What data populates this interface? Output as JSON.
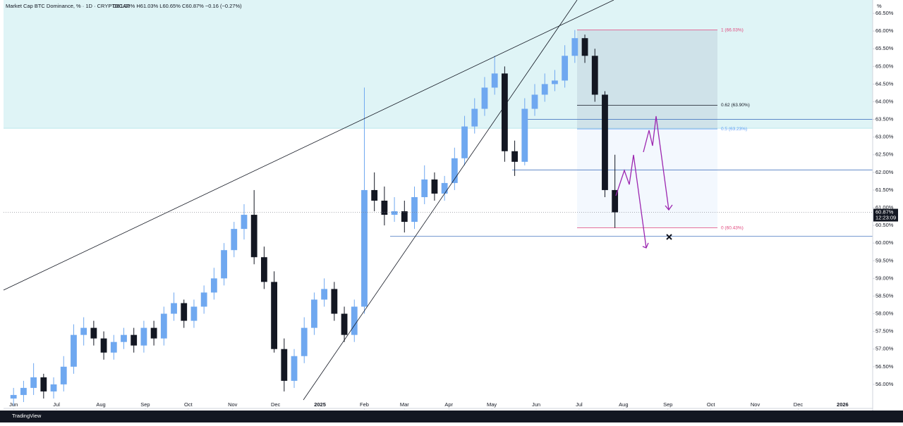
{
  "chart_data": {
    "type": "candlestick",
    "title": "Market Cap BTC Dominance, % · 1D · CRYPTOCAP",
    "ohlc_summary": "O61.03% H61.03% L60.65% C60.87% −0.16 (−0.27%)",
    "unit": "%",
    "brand": "TradingView",
    "up_color": "#6fa8f0",
    "down_color": "#131722",
    "x": [
      0,
      7,
      14,
      21,
      28,
      35,
      42,
      49,
      56,
      63,
      70,
      77,
      84,
      91,
      98,
      105,
      112,
      119,
      126,
      133,
      140,
      147,
      154,
      161,
      168,
      175,
      182,
      189,
      196,
      203,
      210,
      217,
      224,
      231,
      238,
      245,
      252,
      259,
      266,
      273,
      280,
      287,
      294,
      301,
      308,
      315,
      322,
      329,
      336,
      343,
      350,
      357,
      364,
      371,
      378,
      385,
      392,
      399,
      406,
      413,
      420
    ],
    "open": [
      55.6,
      55.7,
      55.9,
      56.2,
      55.8,
      56.0,
      56.5,
      57.4,
      57.6,
      57.3,
      56.9,
      57.2,
      57.4,
      57.1,
      57.6,
      57.3,
      58.0,
      58.3,
      57.8,
      58.2,
      58.6,
      59.0,
      59.8,
      60.4,
      60.8,
      59.6,
      58.9,
      57.0,
      56.1,
      56.8,
      57.6,
      58.4,
      58.7,
      58.0,
      57.4,
      58.2,
      61.5,
      61.2,
      60.8,
      60.9,
      60.6,
      61.3,
      61.8,
      61.4,
      61.7,
      62.4,
      63.3,
      63.8,
      64.4,
      64.8,
      62.6,
      62.3,
      63.8,
      64.2,
      64.5,
      64.6,
      65.3,
      65.8,
      65.3,
      64.2,
      61.5
    ],
    "high": [
      55.9,
      56.1,
      56.6,
      56.3,
      56.2,
      56.8,
      57.7,
      57.9,
      57.8,
      57.5,
      57.4,
      57.6,
      57.6,
      57.8,
      57.8,
      58.2,
      58.6,
      58.4,
      58.4,
      58.8,
      59.3,
      60.0,
      60.6,
      61.1,
      61.5,
      59.9,
      59.2,
      57.3,
      57.0,
      57.9,
      58.6,
      59.0,
      58.9,
      58.2,
      58.4,
      64.4,
      62.0,
      61.6,
      61.3,
      61.2,
      61.6,
      62.2,
      62.0,
      61.9,
      62.7,
      63.6,
      64.1,
      64.7,
      65.3,
      65.0,
      62.9,
      64.1,
      64.5,
      64.8,
      64.9,
      65.6,
      66.03,
      65.9,
      65.5,
      64.3,
      62.5
    ],
    "low": [
      55.4,
      55.5,
      55.7,
      55.6,
      55.6,
      55.8,
      56.3,
      57.1,
      57.1,
      56.7,
      56.7,
      57.0,
      56.9,
      56.9,
      57.1,
      57.1,
      57.8,
      57.6,
      57.6,
      58.0,
      58.4,
      58.8,
      59.6,
      60.1,
      59.4,
      58.7,
      56.9,
      55.8,
      55.9,
      56.6,
      57.4,
      58.2,
      57.8,
      57.2,
      57.2,
      58.0,
      60.9,
      60.5,
      60.6,
      60.3,
      60.4,
      61.1,
      61.2,
      61.2,
      61.5,
      62.2,
      63.1,
      63.6,
      64.2,
      62.3,
      61.9,
      62.2,
      63.6,
      64.0,
      64.3,
      64.4,
      65.1,
      65.1,
      64.0,
      61.3,
      60.43
    ],
    "close": [
      55.7,
      55.9,
      56.2,
      55.8,
      56.0,
      56.5,
      57.4,
      57.6,
      57.3,
      56.9,
      57.2,
      57.4,
      57.1,
      57.6,
      57.3,
      58.0,
      58.3,
      57.8,
      58.2,
      58.6,
      59.0,
      59.8,
      60.4,
      60.8,
      59.6,
      58.9,
      57.0,
      56.1,
      56.8,
      57.6,
      58.4,
      58.7,
      58.0,
      57.4,
      58.2,
      61.5,
      61.2,
      60.8,
      60.9,
      60.6,
      61.3,
      61.8,
      61.4,
      61.7,
      62.4,
      63.3,
      63.8,
      64.4,
      64.8,
      62.6,
      62.3,
      63.8,
      64.2,
      64.5,
      64.6,
      65.3,
      65.8,
      65.3,
      64.2,
      61.5,
      60.87
    ],
    "xlim": [
      -7,
      600
    ],
    "xticks": [
      {
        "value": 0,
        "label": "Jun"
      },
      {
        "value": 30,
        "label": "Jul"
      },
      {
        "value": 61,
        "label": "Aug"
      },
      {
        "value": 92,
        "label": "Sep"
      },
      {
        "value": 122,
        "label": "Oct"
      },
      {
        "value": 153,
        "label": "Nov"
      },
      {
        "value": 183,
        "label": "Dec"
      },
      {
        "value": 214,
        "label": "2025"
      },
      {
        "value": 245,
        "label": "Feb"
      },
      {
        "value": 273,
        "label": "Mar"
      },
      {
        "value": 304,
        "label": "Apr"
      },
      {
        "value": 334,
        "label": "May"
      },
      {
        "value": 365,
        "label": "Jun"
      },
      {
        "value": 395,
        "label": "Jul"
      },
      {
        "value": 426,
        "label": "Aug"
      },
      {
        "value": 457,
        "label": "Sep"
      },
      {
        "value": 487,
        "label": "Oct"
      },
      {
        "value": 518,
        "label": "Nov"
      },
      {
        "value": 548,
        "label": "Dec"
      },
      {
        "value": 579,
        "label": "2026"
      }
    ],
    "ylim": [
      55.32,
      66.88
    ],
    "yticks": [
      {
        "value": 56,
        "label": "56.00%"
      },
      {
        "value": 56.5,
        "label": "56.50%"
      },
      {
        "value": 57,
        "label": "57.00%"
      },
      {
        "value": 57.5,
        "label": "57.50%"
      },
      {
        "value": 58,
        "label": "58.00%"
      },
      {
        "value": 58.5,
        "label": "58.50%"
      },
      {
        "value": 59,
        "label": "59.00%"
      },
      {
        "value": 59.5,
        "label": "59.50%"
      },
      {
        "value": 60,
        "label": "60.00%"
      },
      {
        "value": 60.5,
        "label": "60.50%"
      },
      {
        "value": 61,
        "label": "61.00%"
      },
      {
        "value": 61.5,
        "label": "61.50%"
      },
      {
        "value": 62,
        "label": "62.00%"
      },
      {
        "value": 62.5,
        "label": "62.50%"
      },
      {
        "value": 63,
        "label": "63.00%"
      },
      {
        "value": 63.5,
        "label": "63.50%"
      },
      {
        "value": 64,
        "label": "64.00%"
      },
      {
        "value": 64.5,
        "label": "64.50%"
      },
      {
        "value": 65,
        "label": "65.00%"
      },
      {
        "value": 65.5,
        "label": "65.50%"
      },
      {
        "value": 66,
        "label": "66.00%"
      },
      {
        "value": 66.5,
        "label": "66.50%"
      }
    ],
    "zone_bottom": 63.25,
    "fib_levels": [
      {
        "value": 66.03,
        "label": "1 (66.03%)",
        "color": "#e0457b"
      },
      {
        "value": 63.9,
        "label": "0.62 (63.90%)",
        "color": "#131722"
      },
      {
        "value": 63.23,
        "label": "0.5 (63.23%)",
        "color": "#5b9cf6"
      },
      {
        "value": 60.43,
        "label": "0 (60.43%)",
        "color": "#e0457b"
      }
    ],
    "levels": [
      63.5,
      62.07,
      60.19
    ],
    "last_price": {
      "value": 60.87,
      "label": "60.87%"
    },
    "countdown": "12:23:09"
  }
}
